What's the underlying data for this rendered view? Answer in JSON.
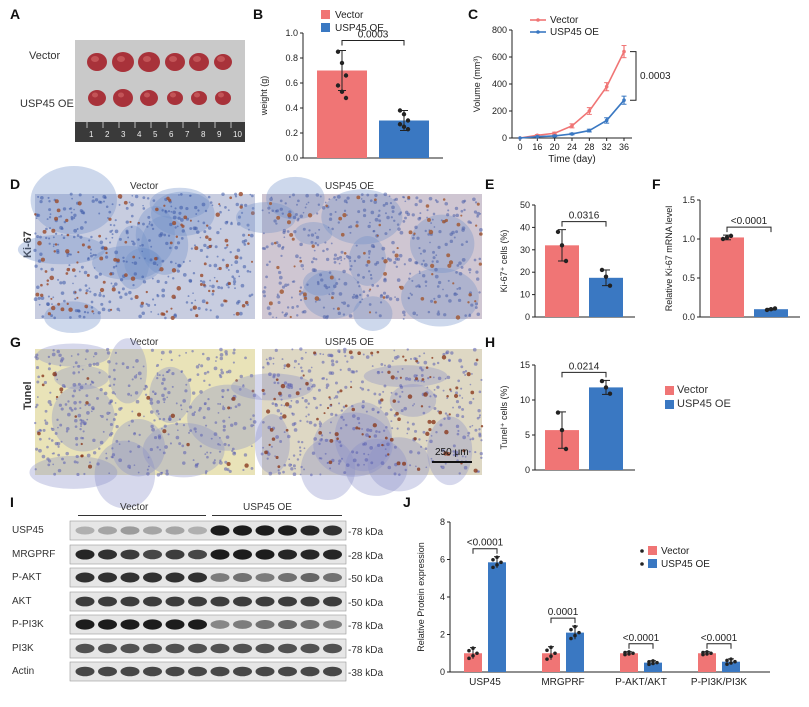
{
  "panel_labels": {
    "A": "A",
    "B": "B",
    "C": "C",
    "D": "D",
    "E": "E",
    "F": "F",
    "G": "G",
    "H": "H",
    "I": "I",
    "J": "J"
  },
  "panel_a": {
    "row1": "Vector",
    "row2": "USP45 OE",
    "ruler_numbers": [
      "1",
      "2",
      "3",
      "4",
      "5",
      "6",
      "7",
      "8",
      "9",
      "10"
    ]
  },
  "panel_d": {
    "label": "Ki-67",
    "left_title": "Vector",
    "right_title": "USP45 OE"
  },
  "panel_g": {
    "label": "Tunel",
    "left_title": "Vector",
    "right_title": "USP45 OE",
    "scalebar": "250 μm"
  },
  "legend_h": {
    "items": [
      "Vector",
      "USP45 OE"
    ]
  },
  "panel_i": {
    "group_left": "Vector",
    "group_right": "USP45 OE",
    "rows": [
      {
        "name": "USP45",
        "kda": "78 kDa"
      },
      {
        "name": "MRGPRF",
        "kda": "28 kDa"
      },
      {
        "name": "P-AKT",
        "kda": "50 kDa"
      },
      {
        "name": "AKT",
        "kda": "50 kDa"
      },
      {
        "name": "P-PI3K",
        "kda": "78 kDa"
      },
      {
        "name": "PI3K",
        "kda": "78 kDa"
      },
      {
        "name": "Actin",
        "kda": "38 kDa"
      }
    ]
  },
  "colors": {
    "vector": "#f07575",
    "oe": "#3a78c2"
  },
  "chart_data": [
    {
      "panel": "B",
      "type": "bar",
      "categories": [
        "Vector",
        "USP45 OE"
      ],
      "values": [
        0.7,
        0.3
      ],
      "errors": [
        0.16,
        0.08
      ],
      "points": [
        [
          0.85,
          0.76,
          0.66,
          0.58,
          0.53,
          0.48
        ],
        [
          0.38,
          0.35,
          0.3,
          0.27,
          0.25,
          0.23
        ]
      ],
      "ylabel": "weight (g)",
      "ylim": [
        0,
        1.0
      ],
      "yticks": [
        "0.0",
        "0.2",
        "0.4",
        "0.6",
        "0.8",
        "1.0"
      ],
      "pvalue": "0.0003",
      "legend": [
        "Vector",
        "USP45 OE"
      ]
    },
    {
      "panel": "C",
      "type": "line",
      "x": [
        0,
        16,
        20,
        24,
        28,
        32,
        36
      ],
      "xticks": [
        "0",
        "16",
        "20",
        "24",
        "28",
        "32",
        "36"
      ],
      "series": [
        {
          "name": "Vector",
          "values": [
            0,
            20,
            35,
            90,
            200,
            380,
            640
          ],
          "errors": [
            0,
            5,
            8,
            15,
            25,
            30,
            45
          ]
        },
        {
          "name": "USP45 OE",
          "values": [
            0,
            10,
            15,
            30,
            55,
            130,
            280
          ],
          "errors": [
            0,
            3,
            5,
            6,
            10,
            20,
            30
          ]
        }
      ],
      "xlabel": "Time (day)",
      "ylabel": "Volume (mm³)",
      "ylim": [
        0,
        800
      ],
      "yticks": [
        "0",
        "200",
        "400",
        "600",
        "800"
      ],
      "pvalue": "0.0003"
    },
    {
      "panel": "E",
      "type": "bar",
      "categories": [
        "Vector",
        "USP45 OE"
      ],
      "values": [
        32,
        17.5
      ],
      "errors": [
        7,
        3.5
      ],
      "points": [
        [
          38,
          32,
          25
        ],
        [
          21,
          18,
          14
        ]
      ],
      "ylabel": "Ki-67⁺ cells (%)",
      "ylim": [
        0,
        50
      ],
      "yticks": [
        "0",
        "10",
        "20",
        "30",
        "40",
        "50"
      ],
      "pvalue": "0.0316"
    },
    {
      "panel": "F",
      "type": "bar",
      "categories": [
        "Vector",
        "USP45 OE"
      ],
      "values": [
        1.02,
        0.1
      ],
      "errors": [
        0.03,
        0.01
      ],
      "points": [
        [
          1.0,
          1.02,
          1.04
        ],
        [
          0.09,
          0.1,
          0.11
        ]
      ],
      "ylabel": "Relative Ki-67 mRNA level",
      "ylim": [
        0,
        1.5
      ],
      "yticks": [
        "0.0",
        "0.5",
        "1.0",
        "1.5"
      ],
      "pvalue": "<0.0001"
    },
    {
      "panel": "H",
      "type": "bar",
      "categories": [
        "Vector",
        "USP45 OE"
      ],
      "values": [
        5.7,
        11.8
      ],
      "errors": [
        2.6,
        1.0
      ],
      "points": [
        [
          8.2,
          5.7,
          3.0
        ],
        [
          12.7,
          11.8,
          10.9
        ]
      ],
      "ylabel": "Tunel⁺ cells (%)",
      "ylim": [
        0,
        15
      ],
      "yticks": [
        "0",
        "5",
        "10",
        "15"
      ],
      "pvalue": "0.0214"
    },
    {
      "panel": "J",
      "type": "bar",
      "categories": [
        "USP45",
        "MRGPRF",
        "P-AKT/AKT",
        "P-PI3K/PI3K"
      ],
      "series": [
        {
          "name": "Vector",
          "values": [
            1.0,
            1.0,
            1.0,
            1.0
          ],
          "errors": [
            0.3,
            0.35,
            0.08,
            0.08
          ]
        },
        {
          "name": "USP45 OE",
          "values": [
            5.85,
            2.1,
            0.5,
            0.55
          ],
          "errors": [
            0.3,
            0.35,
            0.1,
            0.15
          ]
        }
      ],
      "ylabel": "Relative Protein expression",
      "ylim": [
        0,
        8
      ],
      "yticks": [
        "0",
        "2",
        "4",
        "6",
        "8"
      ],
      "pvalues": [
        "<0.0001",
        "0.0001",
        "<0.0001",
        "<0.0001"
      ]
    }
  ]
}
